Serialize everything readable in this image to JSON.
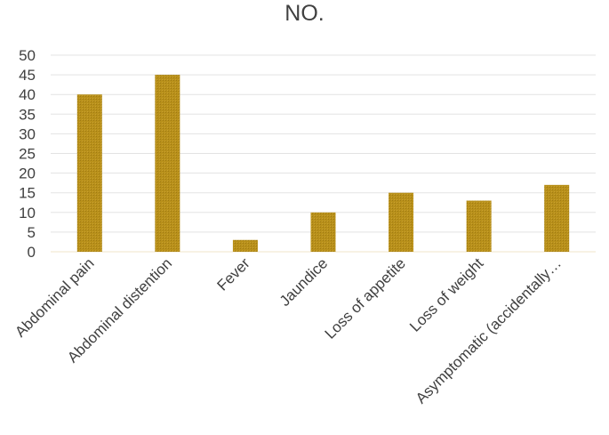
{
  "chart_data": {
    "type": "bar",
    "title": "NO.",
    "categories": [
      "Abdominal pain",
      "Abdominal distention",
      "Fever",
      "Jaundice",
      "Loss of appetite",
      "Loss of weight",
      "Asymptomatic (accidentally…"
    ],
    "series": [
      {
        "values": [
          40,
          45,
          3,
          10,
          15,
          13,
          17
        ],
        "color": "#B8901A"
      }
    ],
    "xlabel": "",
    "ylabel": "",
    "ylim": [
      0,
      50
    ],
    "yticks": [
      0,
      5,
      10,
      15,
      20,
      25,
      30,
      35,
      40,
      45,
      50
    ],
    "grid": true,
    "legend": "none"
  }
}
